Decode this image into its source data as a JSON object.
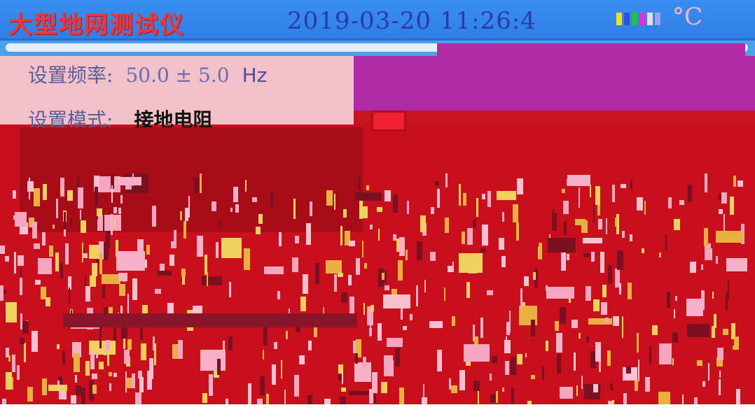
{
  "header": {
    "app_title": "大型地网测试仪",
    "datetime": "2019-03-20 11:26:4",
    "temperature": "°C"
  },
  "settings": {
    "freq_label": "设置频率:",
    "freq_value": "50.0 ± 5.0",
    "freq_unit": "Hz",
    "mode_label": "设置模式:",
    "mode_value": "接地电阻"
  },
  "colors": {
    "title_bar": "#3a8ef0",
    "title_text": "#e83a3a",
    "panel_pink": "#f2c0c8",
    "panel_purple": "#b02aa8",
    "main_red": "#c8101c"
  }
}
